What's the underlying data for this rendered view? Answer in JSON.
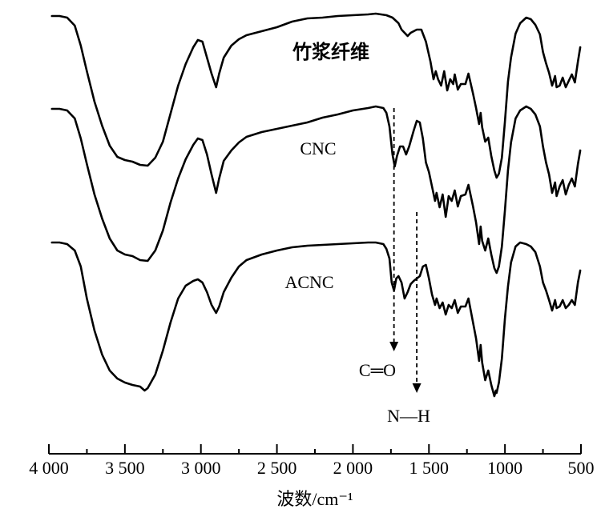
{
  "chart_data": {
    "type": "line",
    "title": "",
    "xlabel": "波数/cm⁻¹",
    "ylabel": "",
    "xlim": [
      4000,
      500
    ],
    "xticks": [
      {
        "value": 4000,
        "label": "4 000"
      },
      {
        "value": 3500,
        "label": "3 500"
      },
      {
        "value": 3000,
        "label": "3 000"
      },
      {
        "value": 2500,
        "label": "2 500"
      },
      {
        "value": 2000,
        "label": "2 000"
      },
      {
        "value": 1500,
        "label": "1 500"
      },
      {
        "value": 1000,
        "label": "1000"
      },
      {
        "value": 500,
        "label": "500"
      }
    ],
    "minor_ticks": [
      3750,
      3250,
      2750,
      2250,
      1750,
      1250,
      750
    ],
    "y_axis_shown": false,
    "grid": false,
    "series": [
      {
        "name": "竹浆纤维",
        "points": [
          [
            3980,
            3
          ],
          [
            3930,
            3
          ],
          [
            3880,
            5
          ],
          [
            3830,
            15
          ],
          [
            3790,
            40
          ],
          [
            3750,
            72
          ],
          [
            3700,
            110
          ],
          [
            3650,
            140
          ],
          [
            3600,
            165
          ],
          [
            3550,
            179
          ],
          [
            3500,
            183
          ],
          [
            3450,
            185
          ],
          [
            3400,
            189
          ],
          [
            3350,
            190
          ],
          [
            3300,
            180
          ],
          [
            3250,
            160
          ],
          [
            3200,
            125
          ],
          [
            3150,
            90
          ],
          [
            3100,
            63
          ],
          [
            3050,
            42
          ],
          [
            3020,
            33
          ],
          [
            2990,
            35
          ],
          [
            2960,
            55
          ],
          [
            2930,
            75
          ],
          [
            2900,
            92
          ],
          [
            2880,
            75
          ],
          [
            2850,
            55
          ],
          [
            2800,
            40
          ],
          [
            2750,
            32
          ],
          [
            2700,
            27
          ],
          [
            2600,
            22
          ],
          [
            2500,
            17
          ],
          [
            2400,
            10
          ],
          [
            2300,
            6
          ],
          [
            2200,
            5
          ],
          [
            2100,
            3
          ],
          [
            2000,
            2
          ],
          [
            1900,
            1
          ],
          [
            1850,
            0
          ],
          [
            1780,
            2
          ],
          [
            1740,
            5
          ],
          [
            1700,
            12
          ],
          [
            1680,
            20
          ],
          [
            1640,
            28
          ],
          [
            1620,
            24
          ],
          [
            1580,
            20
          ],
          [
            1550,
            20
          ],
          [
            1520,
            35
          ],
          [
            1490,
            60
          ],
          [
            1470,
            82
          ],
          [
            1455,
            72
          ],
          [
            1440,
            82
          ],
          [
            1420,
            90
          ],
          [
            1400,
            72
          ],
          [
            1380,
            96
          ],
          [
            1360,
            82
          ],
          [
            1340,
            88
          ],
          [
            1330,
            76
          ],
          [
            1310,
            95
          ],
          [
            1290,
            88
          ],
          [
            1260,
            88
          ],
          [
            1240,
            75
          ],
          [
            1210,
            100
          ],
          [
            1190,
            118
          ],
          [
            1170,
            138
          ],
          [
            1160,
            124
          ],
          [
            1150,
            142
          ],
          [
            1130,
            160
          ],
          [
            1110,
            155
          ],
          [
            1090,
            178
          ],
          [
            1070,
            196
          ],
          [
            1055,
            205
          ],
          [
            1040,
            200
          ],
          [
            1020,
            180
          ],
          [
            1000,
            135
          ],
          [
            980,
            85
          ],
          [
            960,
            55
          ],
          [
            930,
            25
          ],
          [
            900,
            12
          ],
          [
            860,
            5
          ],
          [
            830,
            7
          ],
          [
            800,
            14
          ],
          [
            770,
            26
          ],
          [
            750,
            48
          ],
          [
            730,
            62
          ],
          [
            710,
            74
          ],
          [
            690,
            90
          ],
          [
            670,
            78
          ],
          [
            660,
            92
          ],
          [
            640,
            90
          ],
          [
            620,
            80
          ],
          [
            600,
            92
          ],
          [
            580,
            84
          ],
          [
            560,
            76
          ],
          [
            540,
            86
          ],
          [
            520,
            60
          ],
          [
            505,
            42
          ]
        ]
      },
      {
        "name": "CNC",
        "points": [
          [
            3980,
            3
          ],
          [
            3930,
            3
          ],
          [
            3880,
            5
          ],
          [
            3830,
            15
          ],
          [
            3790,
            40
          ],
          [
            3750,
            72
          ],
          [
            3700,
            110
          ],
          [
            3650,
            140
          ],
          [
            3600,
            165
          ],
          [
            3550,
            180
          ],
          [
            3500,
            185
          ],
          [
            3450,
            187
          ],
          [
            3400,
            192
          ],
          [
            3350,
            193
          ],
          [
            3300,
            180
          ],
          [
            3250,
            155
          ],
          [
            3200,
            120
          ],
          [
            3150,
            90
          ],
          [
            3100,
            66
          ],
          [
            3050,
            48
          ],
          [
            3020,
            40
          ],
          [
            2990,
            42
          ],
          [
            2960,
            60
          ],
          [
            2930,
            85
          ],
          [
            2900,
            108
          ],
          [
            2880,
            90
          ],
          [
            2850,
            68
          ],
          [
            2800,
            55
          ],
          [
            2750,
            45
          ],
          [
            2700,
            38
          ],
          [
            2600,
            32
          ],
          [
            2500,
            28
          ],
          [
            2400,
            24
          ],
          [
            2300,
            20
          ],
          [
            2200,
            14
          ],
          [
            2100,
            10
          ],
          [
            2000,
            5
          ],
          [
            1900,
            2
          ],
          [
            1850,
            0
          ],
          [
            1800,
            2
          ],
          [
            1780,
            8
          ],
          [
            1760,
            25
          ],
          [
            1740,
            60
          ],
          [
            1725,
            75
          ],
          [
            1710,
            62
          ],
          [
            1690,
            50
          ],
          [
            1670,
            50
          ],
          [
            1650,
            60
          ],
          [
            1630,
            50
          ],
          [
            1600,
            30
          ],
          [
            1580,
            18
          ],
          [
            1560,
            20
          ],
          [
            1540,
            40
          ],
          [
            1520,
            70
          ],
          [
            1500,
            82
          ],
          [
            1480,
            100
          ],
          [
            1460,
            118
          ],
          [
            1450,
            108
          ],
          [
            1430,
            126
          ],
          [
            1410,
            110
          ],
          [
            1390,
            138
          ],
          [
            1370,
            112
          ],
          [
            1350,
            118
          ],
          [
            1330,
            105
          ],
          [
            1310,
            125
          ],
          [
            1290,
            112
          ],
          [
            1260,
            110
          ],
          [
            1240,
            98
          ],
          [
            1210,
            125
          ],
          [
            1190,
            145
          ],
          [
            1170,
            172
          ],
          [
            1160,
            150
          ],
          [
            1150,
            168
          ],
          [
            1130,
            180
          ],
          [
            1110,
            165
          ],
          [
            1090,
            185
          ],
          [
            1070,
            202
          ],
          [
            1055,
            208
          ],
          [
            1040,
            200
          ],
          [
            1020,
            175
          ],
          [
            1000,
            130
          ],
          [
            980,
            80
          ],
          [
            960,
            45
          ],
          [
            930,
            15
          ],
          [
            900,
            5
          ],
          [
            860,
            0
          ],
          [
            830,
            3
          ],
          [
            800,
            10
          ],
          [
            770,
            25
          ],
          [
            750,
            50
          ],
          [
            730,
            70
          ],
          [
            710,
            85
          ],
          [
            690,
            108
          ],
          [
            670,
            95
          ],
          [
            660,
            112
          ],
          [
            640,
            100
          ],
          [
            620,
            92
          ],
          [
            600,
            110
          ],
          [
            580,
            98
          ],
          [
            560,
            90
          ],
          [
            540,
            100
          ],
          [
            520,
            72
          ],
          [
            505,
            55
          ]
        ]
      },
      {
        "name": "ACNC",
        "points": [
          [
            3980,
            0
          ],
          [
            3930,
            0
          ],
          [
            3880,
            2
          ],
          [
            3830,
            10
          ],
          [
            3790,
            30
          ],
          [
            3750,
            70
          ],
          [
            3700,
            110
          ],
          [
            3650,
            140
          ],
          [
            3600,
            160
          ],
          [
            3550,
            170
          ],
          [
            3500,
            175
          ],
          [
            3450,
            178
          ],
          [
            3400,
            180
          ],
          [
            3370,
            185
          ],
          [
            3350,
            182
          ],
          [
            3300,
            165
          ],
          [
            3250,
            135
          ],
          [
            3200,
            100
          ],
          [
            3150,
            70
          ],
          [
            3100,
            54
          ],
          [
            3050,
            48
          ],
          [
            3020,
            46
          ],
          [
            2990,
            50
          ],
          [
            2960,
            62
          ],
          [
            2930,
            78
          ],
          [
            2900,
            88
          ],
          [
            2880,
            80
          ],
          [
            2850,
            62
          ],
          [
            2800,
            44
          ],
          [
            2750,
            30
          ],
          [
            2700,
            22
          ],
          [
            2600,
            15
          ],
          [
            2500,
            10
          ],
          [
            2400,
            6
          ],
          [
            2300,
            4
          ],
          [
            2200,
            3
          ],
          [
            2100,
            2
          ],
          [
            2000,
            1
          ],
          [
            1900,
            0
          ],
          [
            1850,
            0
          ],
          [
            1800,
            2
          ],
          [
            1780,
            8
          ],
          [
            1760,
            20
          ],
          [
            1745,
            50
          ],
          [
            1730,
            60
          ],
          [
            1715,
            45
          ],
          [
            1700,
            42
          ],
          [
            1680,
            50
          ],
          [
            1660,
            70
          ],
          [
            1640,
            62
          ],
          [
            1620,
            52
          ],
          [
            1600,
            48
          ],
          [
            1580,
            45
          ],
          [
            1560,
            42
          ],
          [
            1540,
            30
          ],
          [
            1520,
            28
          ],
          [
            1500,
            45
          ],
          [
            1480,
            65
          ],
          [
            1460,
            78
          ],
          [
            1450,
            70
          ],
          [
            1430,
            82
          ],
          [
            1410,
            75
          ],
          [
            1390,
            90
          ],
          [
            1370,
            78
          ],
          [
            1350,
            82
          ],
          [
            1330,
            72
          ],
          [
            1310,
            88
          ],
          [
            1290,
            80
          ],
          [
            1260,
            80
          ],
          [
            1240,
            70
          ],
          [
            1210,
            100
          ],
          [
            1190,
            120
          ],
          [
            1170,
            148
          ],
          [
            1160,
            128
          ],
          [
            1150,
            150
          ],
          [
            1130,
            172
          ],
          [
            1110,
            160
          ],
          [
            1090,
            178
          ],
          [
            1070,
            192
          ],
          [
            1060,
            185
          ],
          [
            1055,
            188
          ],
          [
            1040,
            175
          ],
          [
            1020,
            145
          ],
          [
            1000,
            95
          ],
          [
            980,
            55
          ],
          [
            960,
            25
          ],
          [
            930,
            5
          ],
          [
            900,
            0
          ],
          [
            860,
            2
          ],
          [
            830,
            5
          ],
          [
            800,
            12
          ],
          [
            770,
            30
          ],
          [
            750,
            50
          ],
          [
            730,
            60
          ],
          [
            710,
            72
          ],
          [
            690,
            85
          ],
          [
            670,
            72
          ],
          [
            660,
            82
          ],
          [
            640,
            80
          ],
          [
            620,
            72
          ],
          [
            600,
            82
          ],
          [
            580,
            78
          ],
          [
            560,
            72
          ],
          [
            540,
            78
          ],
          [
            520,
            50
          ],
          [
            505,
            35
          ]
        ]
      }
    ],
    "series_labels": [
      {
        "series": "竹浆纤维",
        "text": "竹浆纤维"
      },
      {
        "series": "CNC",
        "text": "CNC"
      },
      {
        "series": "ACNC",
        "text": "ACNC"
      }
    ],
    "annotations": [
      {
        "text": "C═O",
        "x": 1730
      },
      {
        "text": "N—H",
        "x": 1580
      }
    ]
  }
}
